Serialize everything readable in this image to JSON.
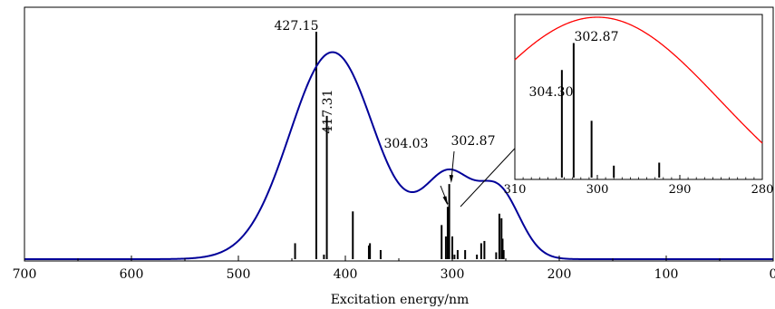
{
  "chart_data": {
    "type": "line",
    "title": "",
    "xlabel": "Excitation energy/nm",
    "ylabel": "",
    "xlim": [
      700,
      0
    ],
    "x_ticks": [
      "700",
      "600",
      "500",
      "400",
      "300",
      "200",
      "100",
      "0"
    ],
    "x_tick_values": [
      700,
      600,
      500,
      400,
      300,
      200,
      100,
      0
    ],
    "grid": false,
    "legend": "none",
    "curve": {
      "color": "#000099",
      "peaks": [
        {
          "center": 412,
          "height": 0.91,
          "width": 40
        },
        {
          "center": 325,
          "height": 0.1,
          "width": 20
        },
        {
          "center": 300,
          "height": 0.3,
          "width": 20
        },
        {
          "center": 257,
          "height": 0.3,
          "width": 20
        }
      ]
    },
    "sticks": [
      {
        "x": 447,
        "y": 0.07
      },
      {
        "x": 427.15,
        "y": 1.0
      },
      {
        "x": 420,
        "y": 0.02
      },
      {
        "x": 417.31,
        "y": 0.63
      },
      {
        "x": 393,
        "y": 0.21
      },
      {
        "x": 378,
        "y": 0.06
      },
      {
        "x": 377,
        "y": 0.07
      },
      {
        "x": 367,
        "y": 0.04
      },
      {
        "x": 310,
        "y": 0.15
      },
      {
        "x": 306,
        "y": 0.1
      },
      {
        "x": 304.3,
        "y": 0.23
      },
      {
        "x": 304.03,
        "y": 0.22
      },
      {
        "x": 302.87,
        "y": 0.33
      },
      {
        "x": 300,
        "y": 0.1
      },
      {
        "x": 298,
        "y": 0.02
      },
      {
        "x": 295,
        "y": 0.04
      },
      {
        "x": 288,
        "y": 0.04
      },
      {
        "x": 277,
        "y": 0.02
      },
      {
        "x": 273,
        "y": 0.07
      },
      {
        "x": 270,
        "y": 0.08
      },
      {
        "x": 259,
        "y": 0.03
      },
      {
        "x": 256,
        "y": 0.2
      },
      {
        "x": 254,
        "y": 0.18
      },
      {
        "x": 253,
        "y": 0.09
      },
      {
        "x": 252,
        "y": 0.04
      }
    ],
    "labels": [
      {
        "x": 427.15,
        "text": "427.15"
      },
      {
        "x": 417.31,
        "text": "417.31"
      },
      {
        "x": 304.03,
        "text": "304.03"
      },
      {
        "x": 302.87,
        "text": "302.87"
      }
    ],
    "inset": {
      "xlim": [
        310,
        280
      ],
      "x_ticks": [
        "310",
        "300",
        "290",
        "280"
      ],
      "x_tick_values": [
        310,
        300,
        290,
        280
      ],
      "curve_color": "#ff0000",
      "sticks": [
        {
          "x": 304.3,
          "y": 0.72
        },
        {
          "x": 302.87,
          "y": 0.9
        },
        {
          "x": 300.7,
          "y": 0.38
        },
        {
          "x": 298.0,
          "y": 0.08
        },
        {
          "x": 292.5,
          "y": 0.1
        }
      ],
      "labels": [
        {
          "x": 304.3,
          "text": "304.30"
        },
        {
          "x": 302.87,
          "text": "302.87"
        }
      ]
    }
  }
}
